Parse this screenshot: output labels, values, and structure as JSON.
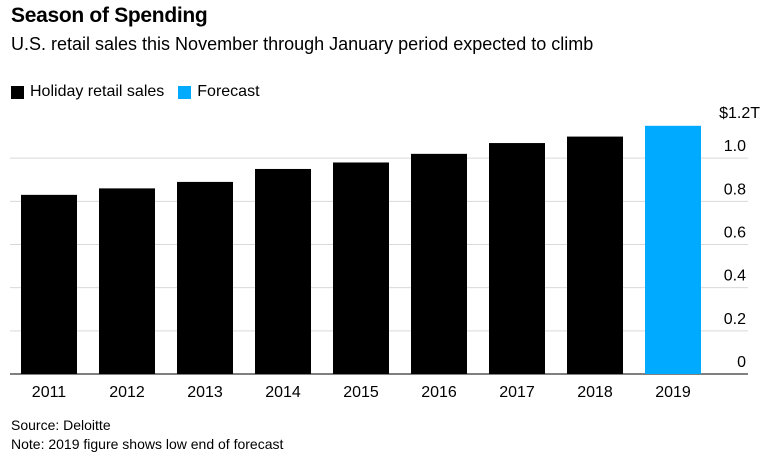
{
  "header": {
    "title": "Season of Spending",
    "subtitle": "U.S. retail sales this November through January period expected to climb"
  },
  "legend": [
    {
      "label": "Holiday retail sales",
      "color": "#000000"
    },
    {
      "label": "Forecast",
      "color": "#00aaff"
    }
  ],
  "axis": {
    "unit_label": "$1.2T"
  },
  "footer": {
    "source": "Source: Deloitte",
    "note": "Note: 2019 figure shows low end of forecast"
  },
  "chart_data": {
    "type": "bar",
    "categories": [
      "2011",
      "2012",
      "2013",
      "2014",
      "2015",
      "2016",
      "2017",
      "2018",
      "2019"
    ],
    "values": [
      0.83,
      0.86,
      0.89,
      0.95,
      0.98,
      1.02,
      1.07,
      1.1,
      1.15
    ],
    "series_type": [
      "actual",
      "actual",
      "actual",
      "actual",
      "actual",
      "actual",
      "actual",
      "actual",
      "forecast"
    ],
    "colors": {
      "actual": "#000000",
      "forecast": "#00aaff"
    },
    "ylim": [
      0,
      1.2
    ],
    "yticks": [
      0,
      0.2,
      0.4,
      0.6,
      0.8,
      1.0
    ],
    "ytick_labels": [
      "0",
      "0.2",
      "0.4",
      "0.6",
      "0.8",
      "1.0"
    ],
    "ylabel": "",
    "xlabel": "",
    "grid": true,
    "y_axis_side": "right",
    "legend_position": "top-left"
  }
}
